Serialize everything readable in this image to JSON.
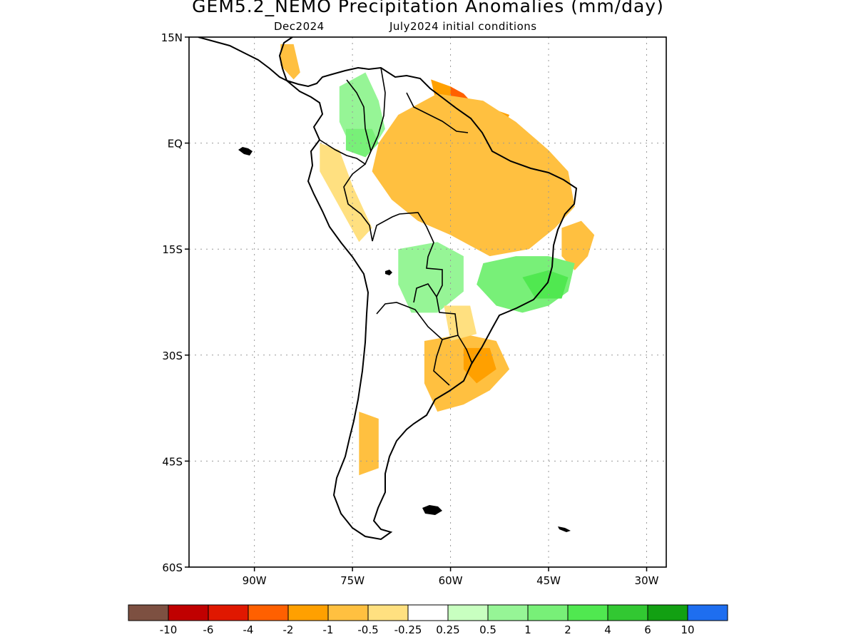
{
  "title": "GEM5.2_NEMO Precipitation Anomalies (mm/day)",
  "subtitle": {
    "forecast_month": "Dec2024",
    "initial_conditions": "July2024 initial conditions"
  },
  "map": {
    "projection": "lat-lon",
    "lon_range": [
      -100,
      -27
    ],
    "lat_range": [
      -60,
      15
    ],
    "grid": "dotted",
    "lat_ticks": [
      {
        "lat": 15,
        "label": "15N"
      },
      {
        "lat": 0,
        "label": "EQ"
      },
      {
        "lat": -15,
        "label": "15S"
      },
      {
        "lat": -30,
        "label": "30S"
      },
      {
        "lat": -45,
        "label": "45S"
      },
      {
        "lat": -60,
        "label": "60S"
      }
    ],
    "lon_ticks": [
      {
        "lon": -90,
        "label": "90W"
      },
      {
        "lon": -75,
        "label": "75W"
      },
      {
        "lon": -60,
        "label": "60W"
      },
      {
        "lon": -45,
        "label": "45W"
      },
      {
        "lon": -30,
        "label": "30W"
      }
    ],
    "anomaly_regions": [
      {
        "name": "amazon-dry",
        "class": "-2",
        "color": "#ffa000",
        "points": [
          [
            -66,
            3
          ],
          [
            -62,
            1
          ],
          [
            -58,
            2
          ],
          [
            -54,
            1
          ],
          [
            -50,
            -1
          ],
          [
            -47,
            -2
          ],
          [
            -44,
            -5
          ],
          [
            -44,
            -9
          ],
          [
            -46,
            -12
          ],
          [
            -48,
            -14
          ],
          [
            -52,
            -14
          ],
          [
            -56,
            -12
          ],
          [
            -60,
            -10
          ],
          [
            -64,
            -9
          ],
          [
            -67,
            -6
          ],
          [
            -68,
            -3
          ]
        ]
      },
      {
        "name": "amazon-core",
        "class": "-4",
        "color": "#ff6000",
        "points": [
          [
            -58,
            -1
          ],
          [
            -55,
            0
          ],
          [
            -52,
            -2
          ],
          [
            -50,
            -5
          ],
          [
            -51,
            -8
          ],
          [
            -54,
            -9
          ],
          [
            -56,
            -7
          ],
          [
            -60,
            -6
          ],
          [
            -61,
            -4
          ]
        ]
      },
      {
        "name": "guiana-dry",
        "class": "-2",
        "color": "#ffa000",
        "points": [
          [
            -63,
            9
          ],
          [
            -60,
            8
          ],
          [
            -57,
            6
          ],
          [
            -54,
            5
          ],
          [
            -51,
            4
          ],
          [
            -52,
            2
          ],
          [
            -56,
            3
          ],
          [
            -59,
            4
          ],
          [
            -62,
            5
          ]
        ]
      },
      {
        "name": "guiana-core",
        "class": "-4",
        "color": "#ff6000",
        "points": [
          [
            -60,
            8
          ],
          [
            -58,
            7
          ],
          [
            -57,
            6
          ],
          [
            -59,
            5
          ],
          [
            -60,
            6
          ]
        ]
      },
      {
        "name": "amazon-margin",
        "class": "-1",
        "color": "#ffc040",
        "points": [
          [
            -68,
            4
          ],
          [
            -62,
            7
          ],
          [
            -55,
            6
          ],
          [
            -50,
            3
          ],
          [
            -45,
            -1
          ],
          [
            -42,
            -4
          ],
          [
            -41,
            -9
          ],
          [
            -44,
            -12
          ],
          [
            -48,
            -15
          ],
          [
            -54,
            -16
          ],
          [
            -60,
            -13
          ],
          [
            -65,
            -11
          ],
          [
            -69,
            -8
          ],
          [
            -72,
            -4
          ],
          [
            -71,
            0
          ]
        ]
      },
      {
        "name": "nordeste-dry",
        "class": "-1",
        "color": "#ffc040",
        "points": [
          [
            -43,
            -12
          ],
          [
            -40,
            -11
          ],
          [
            -38,
            -13
          ],
          [
            -39,
            -16
          ],
          [
            -41,
            -18
          ],
          [
            -43,
            -16
          ]
        ]
      },
      {
        "name": "brazil-wet",
        "class": "1",
        "color": "#78f078",
        "points": [
          [
            -55,
            -17
          ],
          [
            -50,
            -16
          ],
          [
            -45,
            -16
          ],
          [
            -41,
            -17
          ],
          [
            -42,
            -21
          ],
          [
            -45,
            -23
          ],
          [
            -49,
            -24
          ],
          [
            -53,
            -23
          ],
          [
            -56,
            -20
          ]
        ]
      },
      {
        "name": "brazil-wet-core",
        "class": "2",
        "color": "#50e850",
        "points": [
          [
            -49,
            -19
          ],
          [
            -45,
            -18
          ],
          [
            -42,
            -19
          ],
          [
            -43,
            -22
          ],
          [
            -47,
            -22
          ]
        ]
      },
      {
        "name": "bolivia-wet",
        "class": "0.5",
        "color": "#96f596",
        "points": [
          [
            -68,
            -15
          ],
          [
            -62,
            -14
          ],
          [
            -58,
            -16
          ],
          [
            -58,
            -21
          ],
          [
            -62,
            -24
          ],
          [
            -66,
            -24
          ],
          [
            -68,
            -20
          ]
        ]
      },
      {
        "name": "colombia-wet",
        "class": "0.5",
        "color": "#96f596",
        "points": [
          [
            -77,
            8
          ],
          [
            -73,
            10
          ],
          [
            -71,
            6
          ],
          [
            -70,
            2
          ],
          [
            -72,
            -1
          ],
          [
            -75,
            -1
          ],
          [
            -77,
            3
          ]
        ]
      },
      {
        "name": "colombia-wet-core",
        "class": "1",
        "color": "#78f078",
        "points": [
          [
            -76,
            2
          ],
          [
            -72,
            2
          ],
          [
            -71,
            0
          ],
          [
            -73,
            -2
          ],
          [
            -76,
            -1
          ]
        ]
      },
      {
        "name": "uruguay-dry",
        "class": "-1",
        "color": "#ffc040",
        "points": [
          [
            -64,
            -28
          ],
          [
            -58,
            -27
          ],
          [
            -53,
            -28
          ],
          [
            -51,
            -32
          ],
          [
            -54,
            -35
          ],
          [
            -58,
            -37
          ],
          [
            -62,
            -38
          ],
          [
            -64,
            -34
          ]
        ]
      },
      {
        "name": "uruguay-core",
        "class": "-2",
        "color": "#ffa000",
        "points": [
          [
            -58,
            -29
          ],
          [
            -54,
            -29
          ],
          [
            -53,
            -32
          ],
          [
            -56,
            -34
          ],
          [
            -58,
            -32
          ]
        ]
      },
      {
        "name": "paraguay-dry",
        "class": "-0.5",
        "color": "#ffe080",
        "points": [
          [
            -61,
            -23
          ],
          [
            -57,
            -23
          ],
          [
            -56,
            -27
          ],
          [
            -60,
            -28
          ]
        ]
      },
      {
        "name": "chile-south-dry",
        "class": "-1",
        "color": "#ffc040",
        "points": [
          [
            -74,
            -38
          ],
          [
            -71,
            -39
          ],
          [
            -71,
            -46
          ],
          [
            -74,
            -47
          ]
        ]
      },
      {
        "name": "ecuador-dry",
        "class": "-0.5",
        "color": "#ffe080",
        "points": [
          [
            -80,
            0
          ],
          [
            -77,
            -1
          ],
          [
            -75,
            -6
          ],
          [
            -72,
            -12
          ],
          [
            -74,
            -14
          ],
          [
            -77,
            -9
          ],
          [
            -80,
            -4
          ]
        ]
      },
      {
        "name": "central-america-dry",
        "class": "-1",
        "color": "#ffc040",
        "points": [
          [
            -86,
            14
          ],
          [
            -84,
            14
          ],
          [
            -83,
            10
          ],
          [
            -84,
            9
          ],
          [
            -86,
            11
          ]
        ]
      }
    ]
  },
  "colorbar": {
    "colors": [
      "#7d5041",
      "#c00000",
      "#e01800",
      "#ff6000",
      "#ffa000",
      "#ffc040",
      "#ffe080",
      "#ffffff",
      "#c8ffc0",
      "#96f596",
      "#78f078",
      "#50e850",
      "#32c832",
      "#12a012",
      "#1e6ef0"
    ],
    "labels": [
      "-10",
      "-6",
      "-4",
      "-2",
      "-1",
      "-0.5",
      "-0.25",
      "0.25",
      "0.5",
      "1",
      "2",
      "4",
      "6",
      "10"
    ]
  }
}
